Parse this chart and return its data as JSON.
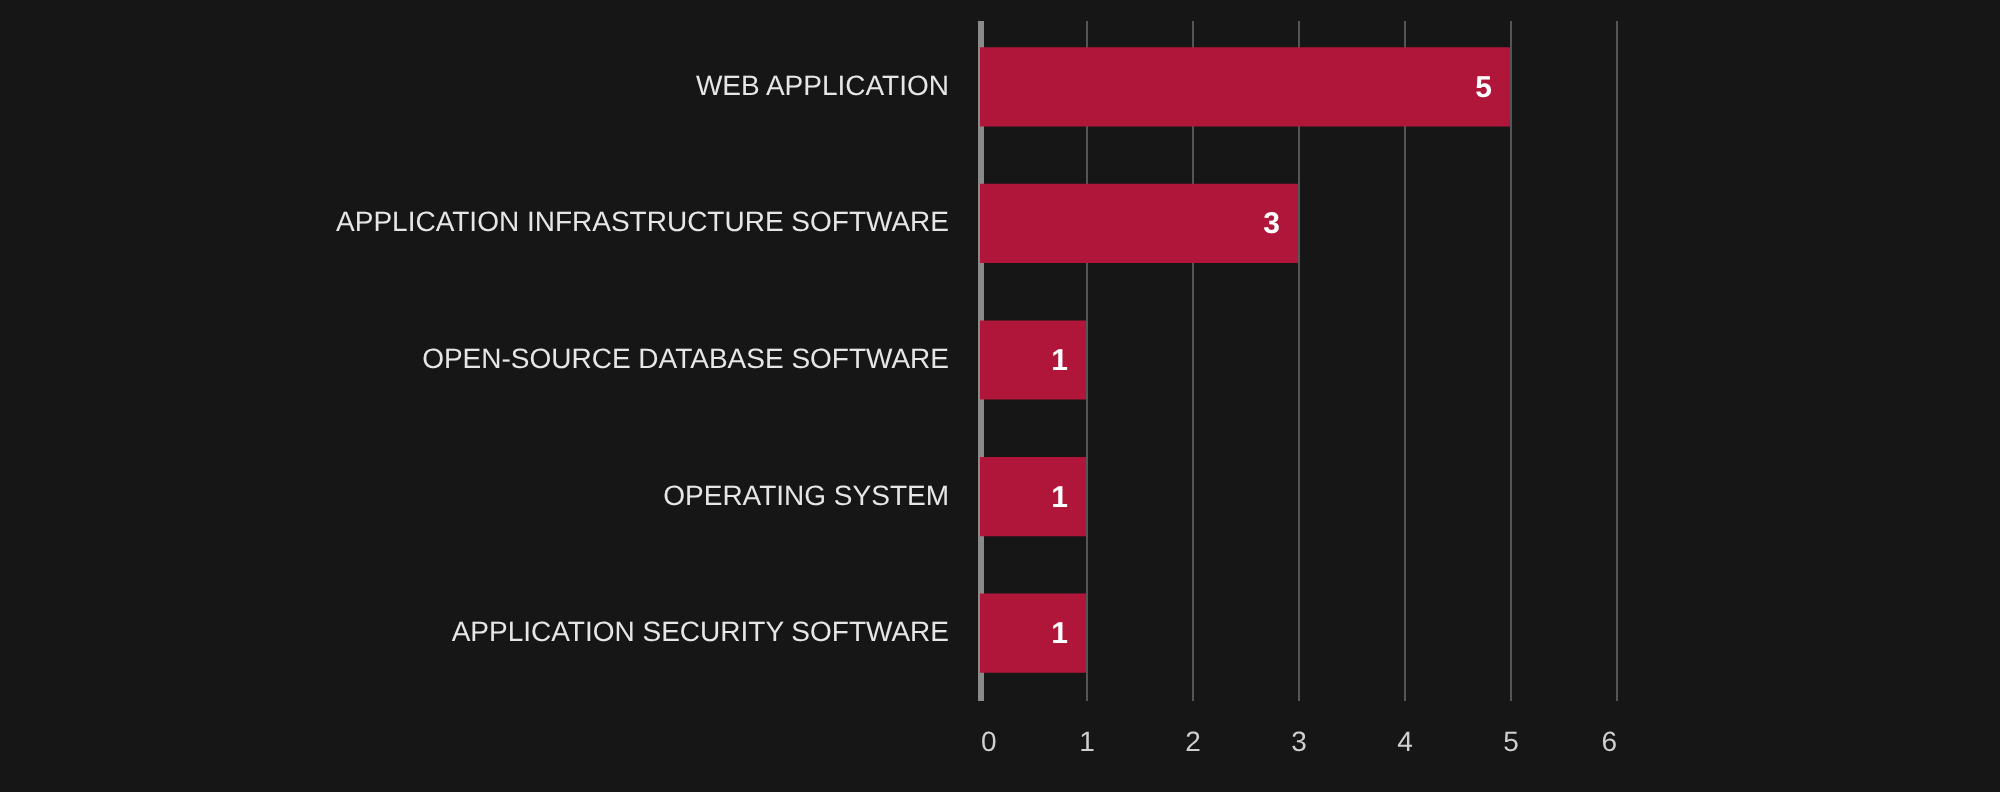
{
  "chart_data": {
    "type": "bar",
    "orientation": "horizontal",
    "categories": [
      "WEB APPLICATION",
      "APPLICATION INFRASTRUCTURE SOFTWARE",
      "OPEN-SOURCE DATABASE SOFTWARE",
      "OPERATING SYSTEM",
      "APPLICATION SECURITY SOFTWARE"
    ],
    "values": [
      5,
      3,
      1,
      1,
      1
    ],
    "color": "#b0163a",
    "xlim": [
      0,
      6
    ],
    "xticks": [
      0,
      1,
      2,
      3,
      4,
      5,
      6
    ],
    "grid": "x",
    "data_labels": true
  }
}
